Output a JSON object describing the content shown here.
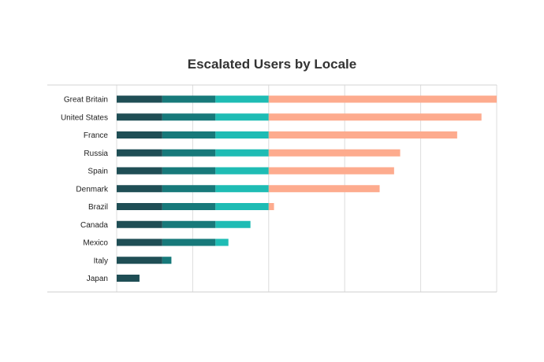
{
  "chart_data": {
    "type": "bar",
    "orientation": "horizontal",
    "stacked": true,
    "title": "Escalated Users by Locale",
    "xlabel": "",
    "ylabel": "",
    "xlim": [
      0,
      5
    ],
    "grid": true,
    "legend": "none",
    "categories": [
      "Great Britain",
      "United States",
      "France",
      "Russia",
      "Spain",
      "Denmark",
      "Brazil",
      "Canada",
      "Mexico",
      "Italy",
      "Japan"
    ],
    "series": [
      {
        "color": "#1f4e55",
        "values": [
          0.6,
          0.6,
          0.6,
          0.6,
          0.6,
          0.6,
          0.6,
          0.6,
          0.6,
          0.6,
          0.3
        ]
      },
      {
        "color": "#17797a",
        "values": [
          0.7,
          0.7,
          0.7,
          0.7,
          0.7,
          0.7,
          0.7,
          0.7,
          0.7,
          0.12,
          0
        ]
      },
      {
        "color": "#1ebcb4",
        "values": [
          0.7,
          0.7,
          0.7,
          0.7,
          0.7,
          0.7,
          0.7,
          0.46,
          0.17,
          0,
          0
        ]
      },
      {
        "color": "#fdab8e",
        "values": [
          3.0,
          2.8,
          2.48,
          1.73,
          1.65,
          1.46,
          0.07,
          0,
          0,
          0,
          0
        ]
      }
    ]
  }
}
